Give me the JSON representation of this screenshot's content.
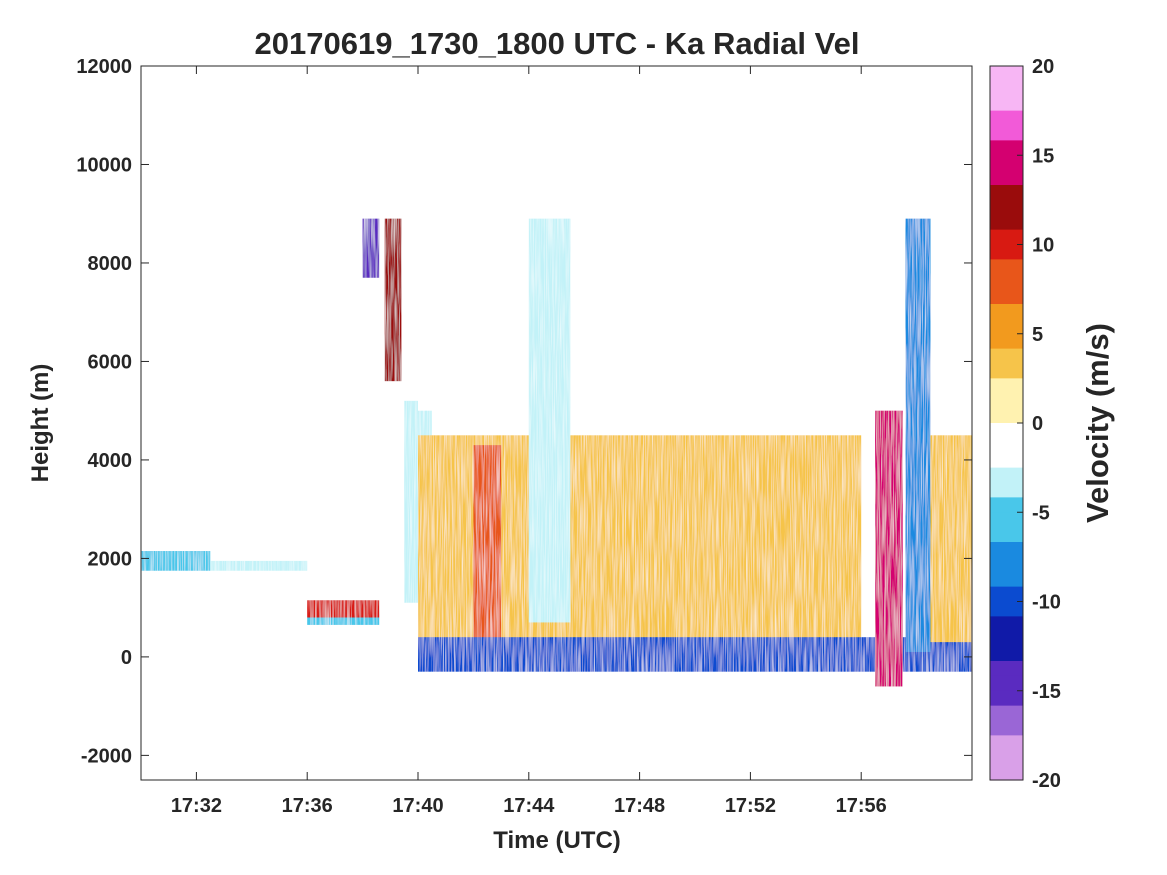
{
  "chart_data": {
    "type": "heatmap",
    "title": "20170619_1730_1800 UTC - Ka Radial Vel",
    "xlabel": "Time (UTC)",
    "ylabel": "Height (m)",
    "xlim": [
      "17:30",
      "18:00"
    ],
    "ylim": [
      -2500,
      12000
    ],
    "x_ticks": [
      "17:32",
      "17:36",
      "17:40",
      "17:44",
      "17:48",
      "17:52",
      "17:56"
    ],
    "y_ticks": [
      -2000,
      0,
      2000,
      4000,
      6000,
      8000,
      10000,
      12000
    ],
    "colorbar": {
      "label": "Velocity (m/s)",
      "range": [
        -20,
        20
      ],
      "ticks": [
        -20,
        -15,
        -10,
        -5,
        0,
        5,
        10,
        15,
        20
      ],
      "colors": [
        "#d9a0e8",
        "#9a66d6",
        "#5a2bc0",
        "#101aa8",
        "#0b4bd0",
        "#1a8ae0",
        "#49c7ea",
        "#c2f2f8",
        "#ffffff",
        "#fff2b0",
        "#f6c44a",
        "#f29a1e",
        "#e8561a",
        "#d81a12",
        "#9a0c0c",
        "#d40070",
        "#f25ad8",
        "#f7b6f4"
      ]
    },
    "regions": [
      {
        "t_start": "17:30",
        "t_end": "17:32.5",
        "h_bottom": 1750,
        "h_top": 2150,
        "velocity": -6
      },
      {
        "t_start": "17:32.5",
        "t_end": "17:36",
        "h_bottom": 1750,
        "h_top": 1950,
        "velocity": -4
      },
      {
        "t_start": "17:36",
        "t_end": "17:38.6",
        "h_bottom": 800,
        "h_top": 1150,
        "velocity": 11
      },
      {
        "t_start": "17:36",
        "t_end": "17:38.6",
        "h_bottom": 650,
        "h_top": 800,
        "velocity": -5
      },
      {
        "t_start": "17:38.8",
        "t_end": "17:39.4",
        "h_bottom": 5600,
        "h_top": 8900,
        "velocity": 12
      },
      {
        "t_start": "17:38",
        "t_end": "17:38.6",
        "h_bottom": 7700,
        "h_top": 8900,
        "velocity": -15
      },
      {
        "t_start": "17:39.5",
        "t_end": "17:40.5",
        "h_bottom": 1100,
        "h_top": 5200,
        "velocity": -3
      },
      {
        "t_start": "17:40",
        "t_end": "17:56",
        "h_bottom": 300,
        "h_top": 4500,
        "velocity": 4
      },
      {
        "t_start": "17:42",
        "t_end": "17:43",
        "h_bottom": 300,
        "h_top": 4300,
        "velocity": 7
      },
      {
        "t_start": "17:40",
        "t_end": "18:00",
        "h_bottom": 5000,
        "h_top": 8900,
        "velocity": -2
      },
      {
        "t_start": "17:44",
        "t_end": "17:45.5",
        "h_bottom": 700,
        "h_top": 8900,
        "velocity": -4
      },
      {
        "t_start": "17:40",
        "t_end": "18:00",
        "h_bottom": -300,
        "h_top": 400,
        "velocity": -9
      },
      {
        "t_start": "17:56.5",
        "t_end": "17:57.5",
        "h_bottom": -600,
        "h_top": 5000,
        "velocity": 14
      },
      {
        "t_start": "17:57.6",
        "t_end": "17:58.5",
        "h_bottom": 100,
        "h_top": 8900,
        "velocity": -7
      },
      {
        "t_start": "17:58.5",
        "t_end": "18:00",
        "h_bottom": 300,
        "h_top": 4500,
        "velocity": 4
      }
    ]
  }
}
